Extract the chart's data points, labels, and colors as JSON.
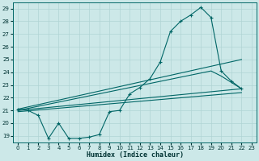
{
  "xlabel": "Humidex (Indice chaleur)",
  "ylabel": "",
  "bg_color": "#cce8e8",
  "grid_color": "#aacccc",
  "line_color": "#006666",
  "xlim": [
    -0.5,
    23.5
  ],
  "ylim": [
    18.5,
    29.5
  ],
  "yticks": [
    19,
    20,
    21,
    22,
    23,
    24,
    25,
    26,
    27,
    28,
    29
  ],
  "xticks": [
    0,
    1,
    2,
    3,
    4,
    5,
    6,
    7,
    8,
    9,
    10,
    11,
    12,
    13,
    14,
    15,
    16,
    17,
    18,
    19,
    20,
    21,
    22,
    23
  ],
  "main_line": [
    [
      0,
      21.1
    ],
    [
      1,
      21.0
    ],
    [
      2,
      20.6
    ],
    [
      3,
      18.8
    ],
    [
      4,
      20.0
    ],
    [
      5,
      18.8
    ],
    [
      6,
      18.8
    ],
    [
      7,
      18.9
    ],
    [
      8,
      19.1
    ],
    [
      9,
      20.9
    ],
    [
      10,
      21.0
    ],
    [
      11,
      22.3
    ],
    [
      12,
      22.8
    ],
    [
      13,
      23.5
    ],
    [
      14,
      24.8
    ],
    [
      15,
      27.2
    ],
    [
      16,
      28.0
    ],
    [
      17,
      28.5
    ],
    [
      18,
      29.1
    ],
    [
      19,
      28.3
    ],
    [
      20,
      24.1
    ],
    [
      21,
      23.3
    ],
    [
      22,
      22.7
    ]
  ],
  "upper_line": [
    [
      0,
      21.1
    ],
    [
      22,
      25.0
    ]
  ],
  "mid_upper_line": [
    [
      0,
      21.0
    ],
    [
      19,
      24.1
    ],
    [
      20,
      23.7
    ],
    [
      22,
      22.7
    ]
  ],
  "mid_line": [
    [
      0,
      21.0
    ],
    [
      22,
      22.7
    ]
  ],
  "lower_line": [
    [
      0,
      20.9
    ],
    [
      22,
      22.4
    ]
  ]
}
